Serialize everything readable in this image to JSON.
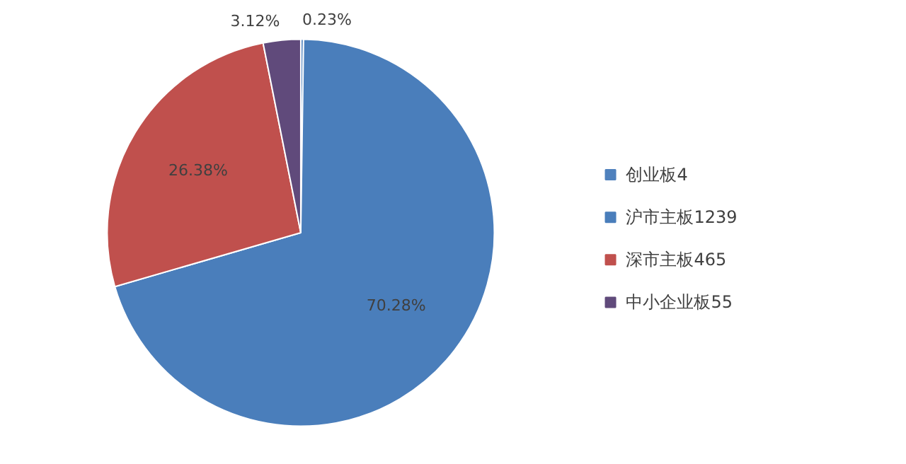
{
  "chart_data": {
    "type": "pie",
    "categories": [
      "创业板4",
      "沪市主板1239",
      "深市主板465",
      "中小企业板55"
    ],
    "values": [
      0.23,
      70.28,
      26.38,
      3.12
    ],
    "colors": [
      "#4f81bd",
      "#4a7ebb",
      "#c0504d",
      "#604a7b"
    ],
    "value_labels": [
      "0.23%",
      "70.28%",
      "26.38%",
      "3.12%"
    ],
    "legend": "right"
  }
}
